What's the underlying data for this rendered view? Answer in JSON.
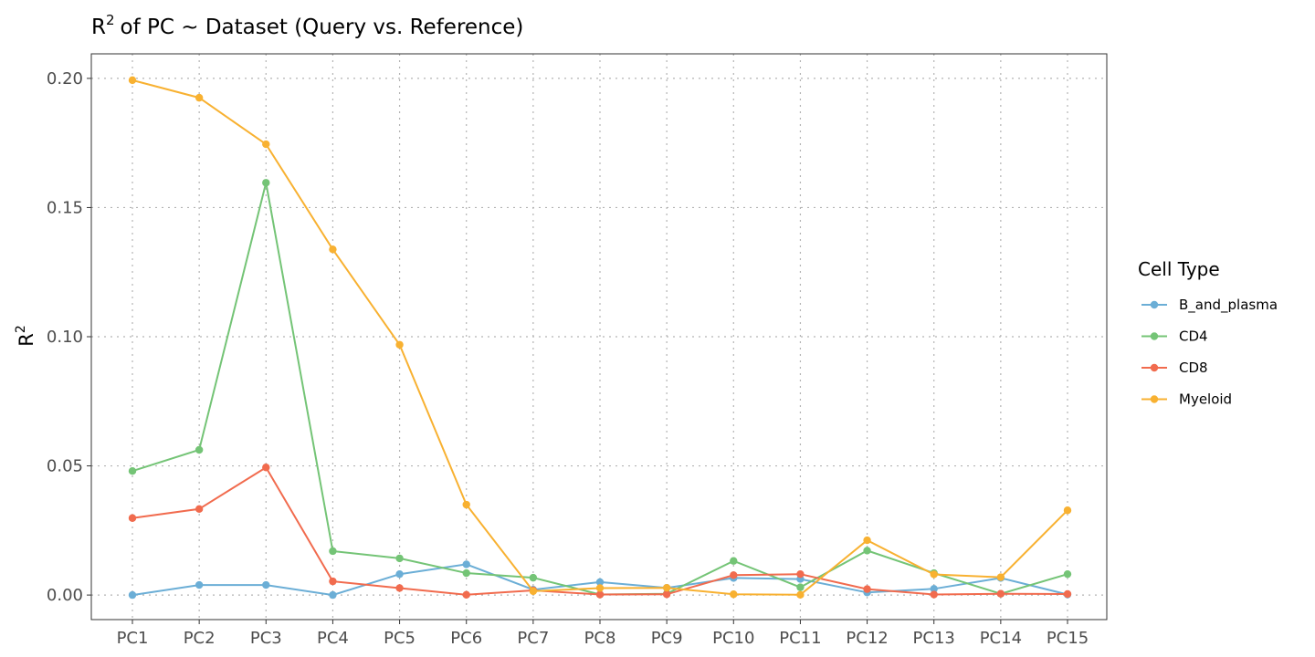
{
  "chart_data": {
    "type": "line",
    "title": "of PC ~  Dataset (Query vs. Reference)",
    "title_prefix": "R",
    "title_sup": "2",
    "ylabel": "R",
    "ylabel_sup": "2",
    "xlabel": "",
    "categories": [
      "PC1",
      "PC2",
      "PC3",
      "PC4",
      "PC5",
      "PC6",
      "PC7",
      "PC8",
      "PC9",
      "PC10",
      "PC11",
      "PC12",
      "PC13",
      "PC14",
      "PC15"
    ],
    "yticks": [
      0.0,
      0.05,
      0.1,
      0.15,
      0.2
    ],
    "ytick_labels": [
      "0.00",
      "0.05",
      "0.10",
      "0.15",
      "0.20"
    ],
    "ylim": [
      -0.0095,
      0.2095
    ],
    "grid": "dotted",
    "legend_title": "Cell Type",
    "legend_position": "right",
    "series": [
      {
        "name": "B_and_plasma",
        "color": "#6BAED6",
        "values": [
          0.0,
          0.0039,
          0.0039,
          0.0,
          0.0081,
          0.0119,
          0.0021,
          0.005,
          0.0028,
          0.0066,
          0.0062,
          0.001,
          0.0024,
          0.0066,
          0.0002
        ]
      },
      {
        "name": "CD4",
        "color": "#74C476",
        "values": [
          0.048,
          0.0562,
          0.1596,
          0.017,
          0.0142,
          0.0085,
          0.0067,
          0.0002,
          0.0005,
          0.0132,
          0.003,
          0.0172,
          0.0085,
          0.0005,
          0.0081
        ]
      },
      {
        "name": "CD8",
        "color": "#F16B4E",
        "values": [
          0.0298,
          0.0333,
          0.0494,
          0.0053,
          0.0027,
          0.0001,
          0.0018,
          0.0002,
          0.0003,
          0.0077,
          0.0081,
          0.0023,
          0.0002,
          0.0005,
          0.0004
        ]
      },
      {
        "name": "Myeloid",
        "color": "#F8B131",
        "values": [
          0.1993,
          0.1925,
          0.1745,
          0.1338,
          0.0969,
          0.035,
          0.0015,
          0.0027,
          0.0028,
          0.0003,
          0.0001,
          0.0212,
          0.008,
          0.0069,
          0.0328
        ]
      }
    ]
  }
}
